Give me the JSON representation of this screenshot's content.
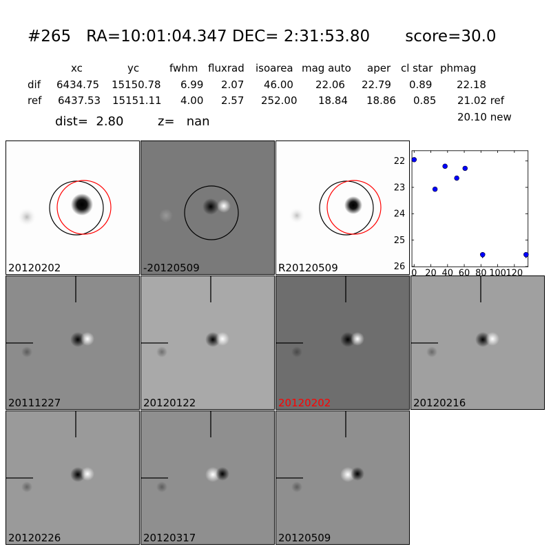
{
  "header": {
    "title": "#265   RA=10:01:04.347 DEC= 2:31:53.80       score=30.0",
    "columns": [
      "xc",
      "yc",
      "fwhm",
      "fluxrad",
      "isoarea",
      "mag auto",
      "aper",
      "cl star",
      "phmag"
    ],
    "dif_row": {
      "label": "dif",
      "values": [
        "6434.75",
        "15150.78",
        "6.99",
        "2.07",
        "46.00",
        "22.06",
        "22.79",
        "0.89",
        "22.18"
      ]
    },
    "ref_row": {
      "label": "ref",
      "values": [
        "6437.53",
        "15151.11",
        "4.00",
        "2.57",
        "252.00",
        "18.84",
        "18.86",
        "0.85",
        "21.02 ref"
      ]
    },
    "new_mag": "20.10 new",
    "dist_text": "dist=  2.80",
    "z_text": "z=   nan"
  },
  "top_panels": [
    {
      "label": "20120202",
      "label_color": "#000000",
      "background": "#fdfdfd"
    },
    {
      "label": "-20120509",
      "label_color": "#000000",
      "background": "#7a7a7a"
    },
    {
      "label": "R20120509",
      "label_color": "#000000",
      "background": "#fdfdfd"
    }
  ],
  "grid_panels": [
    {
      "label": "20111227",
      "label_color": "#000000",
      "background": "#8c8c8c",
      "polarity": "dark-left"
    },
    {
      "label": "20120122",
      "label_color": "#000000",
      "background": "#a9a9a9",
      "polarity": "dark-left"
    },
    {
      "label": "20120202",
      "label_color": "#ff0000",
      "background": "#6e6e6e",
      "polarity": "dark-left"
    },
    {
      "label": "20120216",
      "label_color": "#000000",
      "background": "#a0a0a0",
      "polarity": "dark-left"
    },
    {
      "label": "20120226",
      "label_color": "#000000",
      "background": "#9a9a9a",
      "polarity": "dark-left"
    },
    {
      "label": "20120317",
      "label_color": "#000000",
      "background": "#8f8f8f",
      "polarity": "light-left"
    },
    {
      "label": "20120509",
      "label_color": "#000000",
      "background": "#8f8f8f",
      "polarity": "light-left"
    }
  ],
  "chart_data": {
    "type": "scatter",
    "title": "",
    "xlabel": "",
    "ylabel": "",
    "xlim": [
      -3,
      136
    ],
    "ylim": [
      26,
      21.6
    ],
    "y_inverted": true,
    "xticks": [
      0,
      20,
      40,
      60,
      80,
      100,
      120
    ],
    "yticks": [
      22,
      23,
      24,
      25,
      26
    ],
    "grid": false,
    "marker_color": "#0000ff",
    "points": [
      {
        "x": 0,
        "y": 21.95
      },
      {
        "x": 25,
        "y": 23.07
      },
      {
        "x": 37,
        "y": 22.2
      },
      {
        "x": 51,
        "y": 22.65
      },
      {
        "x": 61,
        "y": 22.28
      },
      {
        "x": 82,
        "y": 25.55,
        "limit": true
      },
      {
        "x": 134,
        "y": 25.55,
        "limit": true
      }
    ]
  }
}
